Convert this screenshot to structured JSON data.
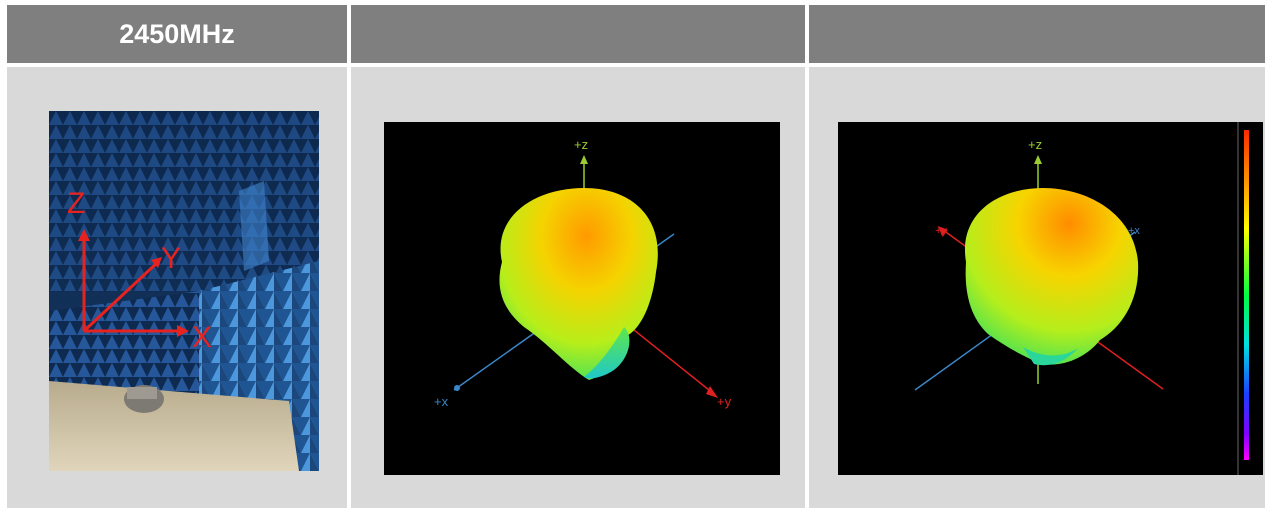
{
  "header": {
    "cells": [
      {
        "label": "2450MHz"
      },
      {
        "label": ""
      },
      {
        "label": ""
      }
    ]
  },
  "photo": {
    "axis_labels": {
      "z": "Z",
      "y": "Y",
      "x": "X"
    },
    "axis_color": "#e8231f"
  },
  "pattern_views": [
    {
      "labels": {
        "z": "+z",
        "x": "+x",
        "y": "+y"
      }
    },
    {
      "labels": {
        "z": "+z",
        "x": "+x",
        "y": "+y"
      }
    }
  ],
  "colors": {
    "header_bg": "#7f7f7f",
    "cell_bg": "#d9d9d9",
    "plot_bg": "#000000",
    "axis_z": "#9acd32",
    "axis_x": "#3a86c8",
    "axis_y": "#e02020"
  }
}
